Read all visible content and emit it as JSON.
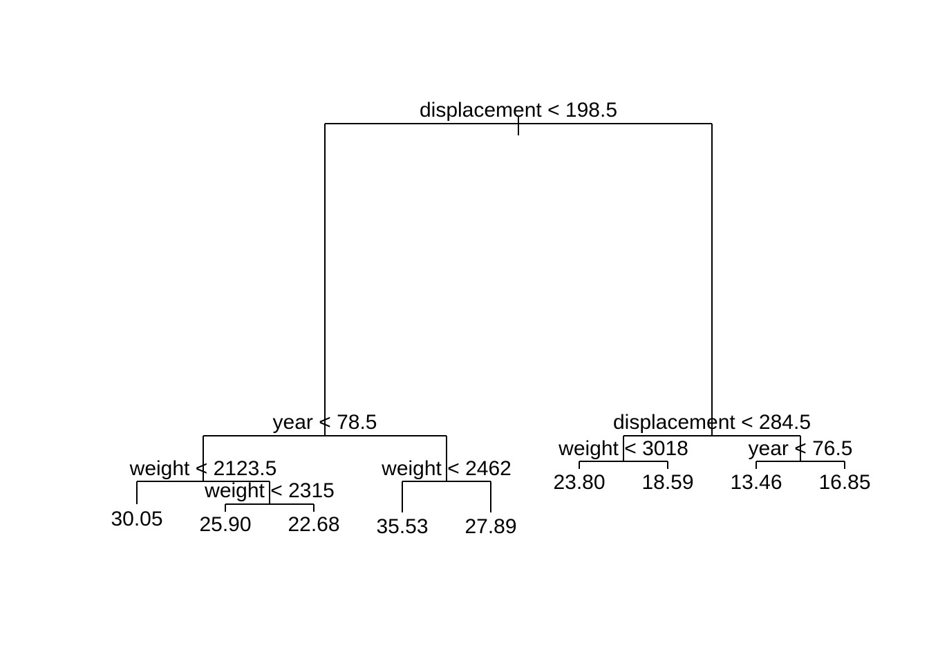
{
  "tree": {
    "root": {
      "split": "displacement < 198.5",
      "left": {
        "split": "year < 78.5",
        "left": {
          "split": "weight < 2123.5",
          "left": {
            "leaf": "30.05"
          },
          "right": {
            "split": "weight < 2315",
            "left": {
              "leaf": "25.90"
            },
            "right": {
              "leaf": "22.68"
            }
          }
        },
        "right": {
          "split": "weight < 2462",
          "left": {
            "leaf": "35.53"
          },
          "right": {
            "leaf": "27.89"
          }
        }
      },
      "right": {
        "split": "displacement < 284.5",
        "left": {
          "split": "weight < 3018",
          "left": {
            "leaf": "23.80"
          },
          "right": {
            "leaf": "18.59"
          }
        },
        "right": {
          "split": "year < 76.5",
          "left": {
            "leaf": "13.46"
          },
          "right": {
            "leaf": "16.85"
          }
        }
      }
    }
  }
}
